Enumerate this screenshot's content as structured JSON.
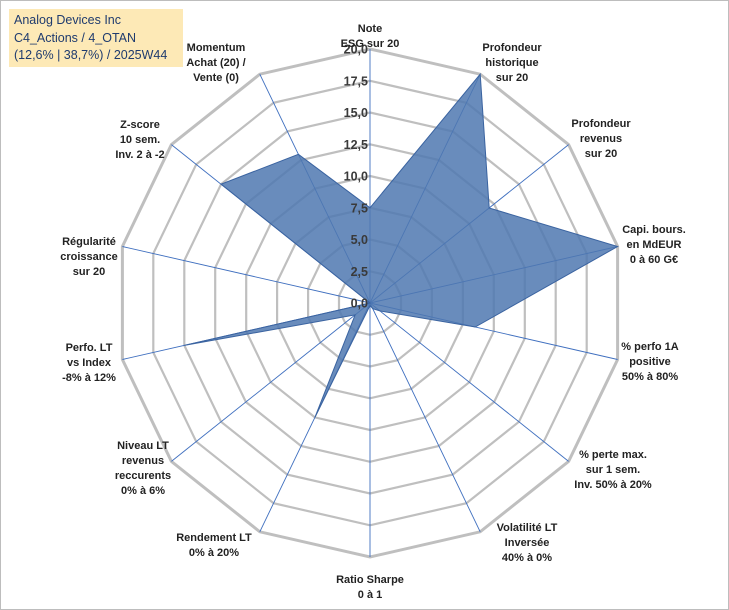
{
  "title_box": {
    "line1": "Analog Devices Inc",
    "line2": "C4_Actions / 4_OTAN",
    "line3": "(12,6% | 38,7%) / 2025W44"
  },
  "chart_data": {
    "type": "radar",
    "title": "Analog Devices Inc",
    "r_range": [
      0,
      20
    ],
    "ticks": [
      0,
      2.5,
      5,
      7.5,
      10,
      12.5,
      15,
      17.5,
      20
    ],
    "tick_labels": [
      "0,0",
      "2,5",
      "5,0",
      "7,5",
      "10,0",
      "12,5",
      "15,0",
      "17,5",
      "20,0"
    ],
    "categories": [
      [
        "Note",
        "ESG sur 20"
      ],
      [
        "Profondeur",
        "historique",
        "sur 20"
      ],
      [
        "Profondeur",
        "revenus",
        "sur 20"
      ],
      [
        "Capi. bours.",
        "en MdEUR",
        "0 à 60 G€"
      ],
      [
        "% perfo 1A",
        "positive",
        "50% à 80%"
      ],
      [
        "% perte max.",
        "sur 1 sem.",
        "Inv. 50% à 20%"
      ],
      [
        "Volatilité LT",
        "Inversée",
        "40% à 0%"
      ],
      [
        "Ratio Sharpe",
        "0 à 1"
      ],
      [
        "Rendement LT",
        "0% à 20%"
      ],
      [
        "Niveau LT",
        "revenus",
        "reccurents",
        "0% à 6%"
      ],
      [
        "Perfo. LT",
        "vs Index",
        "-8% à 12%"
      ],
      [
        "Régularité",
        "croissance",
        "sur 20"
      ],
      [
        "Z-score",
        "10 sem.",
        "Inv. 2 à -2"
      ],
      [
        "Momentum",
        "Achat (20) /",
        "Vente (0)"
      ]
    ],
    "series": [
      {
        "name": "Analog Devices Inc",
        "values": [
          7.5,
          20,
          12,
          20,
          8.5,
          1,
          0.5,
          0.2,
          10,
          1.5,
          15,
          0,
          15,
          13
        ],
        "color": "#4f78b0"
      }
    ],
    "grid": true,
    "legend": "none"
  }
}
